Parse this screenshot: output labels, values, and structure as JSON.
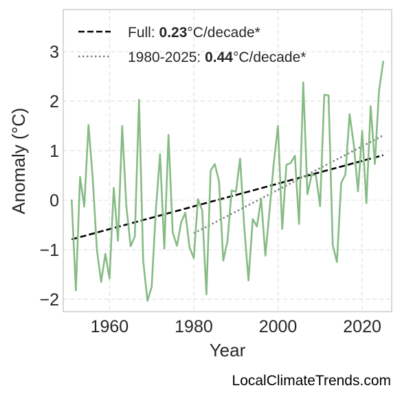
{
  "chart_data": {
    "type": "line",
    "xlabel": "Year",
    "ylabel": "Anomaly (°C)",
    "xlim": [
      1949,
      2027
    ],
    "ylim": [
      -2.25,
      3.85
    ],
    "x_ticks": [
      1960,
      1980,
      2000,
      2020
    ],
    "x_tick_labels": [
      "1960",
      "1980",
      "2000",
      "2020"
    ],
    "y_ticks": [
      -2,
      -1,
      0,
      1,
      2,
      3
    ],
    "y_tick_labels": [
      "−2",
      "−1",
      "0",
      "1",
      "2",
      "3"
    ],
    "grid": true,
    "legend_position": "top-left",
    "series": [
      {
        "color": "#86bb84",
        "style": "solid",
        "x": [
          1951,
          1952,
          1953,
          1954,
          1955,
          1956,
          1957,
          1958,
          1959,
          1960,
          1961,
          1962,
          1963,
          1964,
          1965,
          1966,
          1967,
          1968,
          1969,
          1970,
          1971,
          1972,
          1973,
          1974,
          1975,
          1976,
          1977,
          1978,
          1979,
          1980,
          1981,
          1982,
          1983,
          1984,
          1985,
          1986,
          1987,
          1988,
          1989,
          1990,
          1991,
          1992,
          1993,
          1994,
          1995,
          1996,
          1997,
          1998,
          1999,
          2000,
          2001,
          2002,
          2003,
          2004,
          2005,
          2006,
          2007,
          2008,
          2009,
          2010,
          2011,
          2012,
          2013,
          2014,
          2015,
          2016,
          2017,
          2018,
          2019,
          2020,
          2021,
          2022,
          2023,
          2024,
          2025
        ],
        "values": [
          0.0,
          -1.82,
          0.47,
          -0.13,
          1.52,
          0.45,
          -1.0,
          -1.65,
          -1.08,
          -1.58,
          0.25,
          -0.82,
          1.5,
          -0.13,
          -0.93,
          -0.73,
          2.03,
          -1.22,
          -2.03,
          -1.75,
          -0.2,
          0.93,
          -0.98,
          1.32,
          -0.65,
          -0.92,
          -0.45,
          -0.25,
          -0.95,
          -1.17,
          0.02,
          -0.2,
          -1.9,
          0.6,
          0.73,
          0.38,
          -1.22,
          -0.83,
          0.2,
          0.17,
          0.84,
          -0.55,
          -1.62,
          -0.38,
          -0.53,
          0.03,
          -1.12,
          -0.2,
          0.75,
          1.5,
          -0.58,
          0.72,
          0.75,
          0.9,
          -0.48,
          2.38,
          0.12,
          0.52,
          0.5,
          -0.12,
          2.13,
          2.12,
          -0.9,
          -1.25,
          0.35,
          0.52,
          1.74,
          1.13,
          0.18,
          1.4,
          -0.06,
          1.9,
          0.73,
          2.22,
          2.8
        ]
      }
    ],
    "trends": [
      {
        "name": "Full",
        "rate": "0.23",
        "unit": "°C/decade*",
        "style": "dashed",
        "color": "#000000",
        "x": [
          1951,
          2025
        ],
        "values": [
          -0.79,
          0.91
        ]
      },
      {
        "name": "1980-2025",
        "rate": "0.44",
        "unit": "°C/decade*",
        "style": "dotted",
        "color": "#808080",
        "x": [
          1980,
          2025
        ],
        "values": [
          -0.67,
          1.31
        ]
      }
    ]
  },
  "legend": {
    "entries": [
      {
        "label": "Full: ",
        "bold": "0.23",
        "suffix": "°C/decade*"
      },
      {
        "label": "1980-2025: ",
        "bold": "0.44",
        "suffix": "°C/decade*"
      }
    ]
  },
  "watermark": "LocalClimateTrends.com"
}
